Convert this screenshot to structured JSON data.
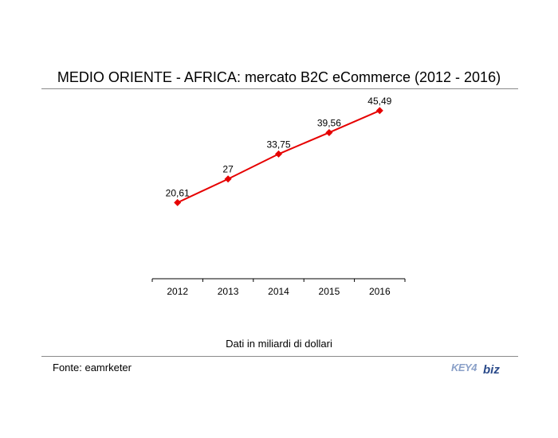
{
  "title": "MEDIO ORIENTE - AFRICA: mercato B2C eCommerce (2012 - 2016)",
  "note": "Dati in miliardi di dollari",
  "source": "Fonte: eamrketer",
  "logo": {
    "text": "KEY4biz",
    "icon": "key4biz-logo",
    "color_key": "#8aa0c8",
    "color_biz": "#2a4a8a"
  },
  "colors": {
    "series": "#e60000",
    "axis": "#000000",
    "rule": "#8a8a8a"
  },
  "chart_data": {
    "type": "line",
    "categories": [
      "2012",
      "2013",
      "2014",
      "2015",
      "2016"
    ],
    "values": [
      20.61,
      27,
      33.75,
      39.56,
      45.49
    ],
    "data_labels": [
      "20,61",
      "27",
      "33,75",
      "39,56",
      "45,49"
    ],
    "marker": "diamond",
    "title": "MEDIO ORIENTE - AFRICA: mercato B2C eCommerce (2012 - 2016)",
    "xlabel": "",
    "ylabel": "",
    "ylim": [
      0,
      50
    ],
    "grid": false,
    "legend": "none"
  }
}
